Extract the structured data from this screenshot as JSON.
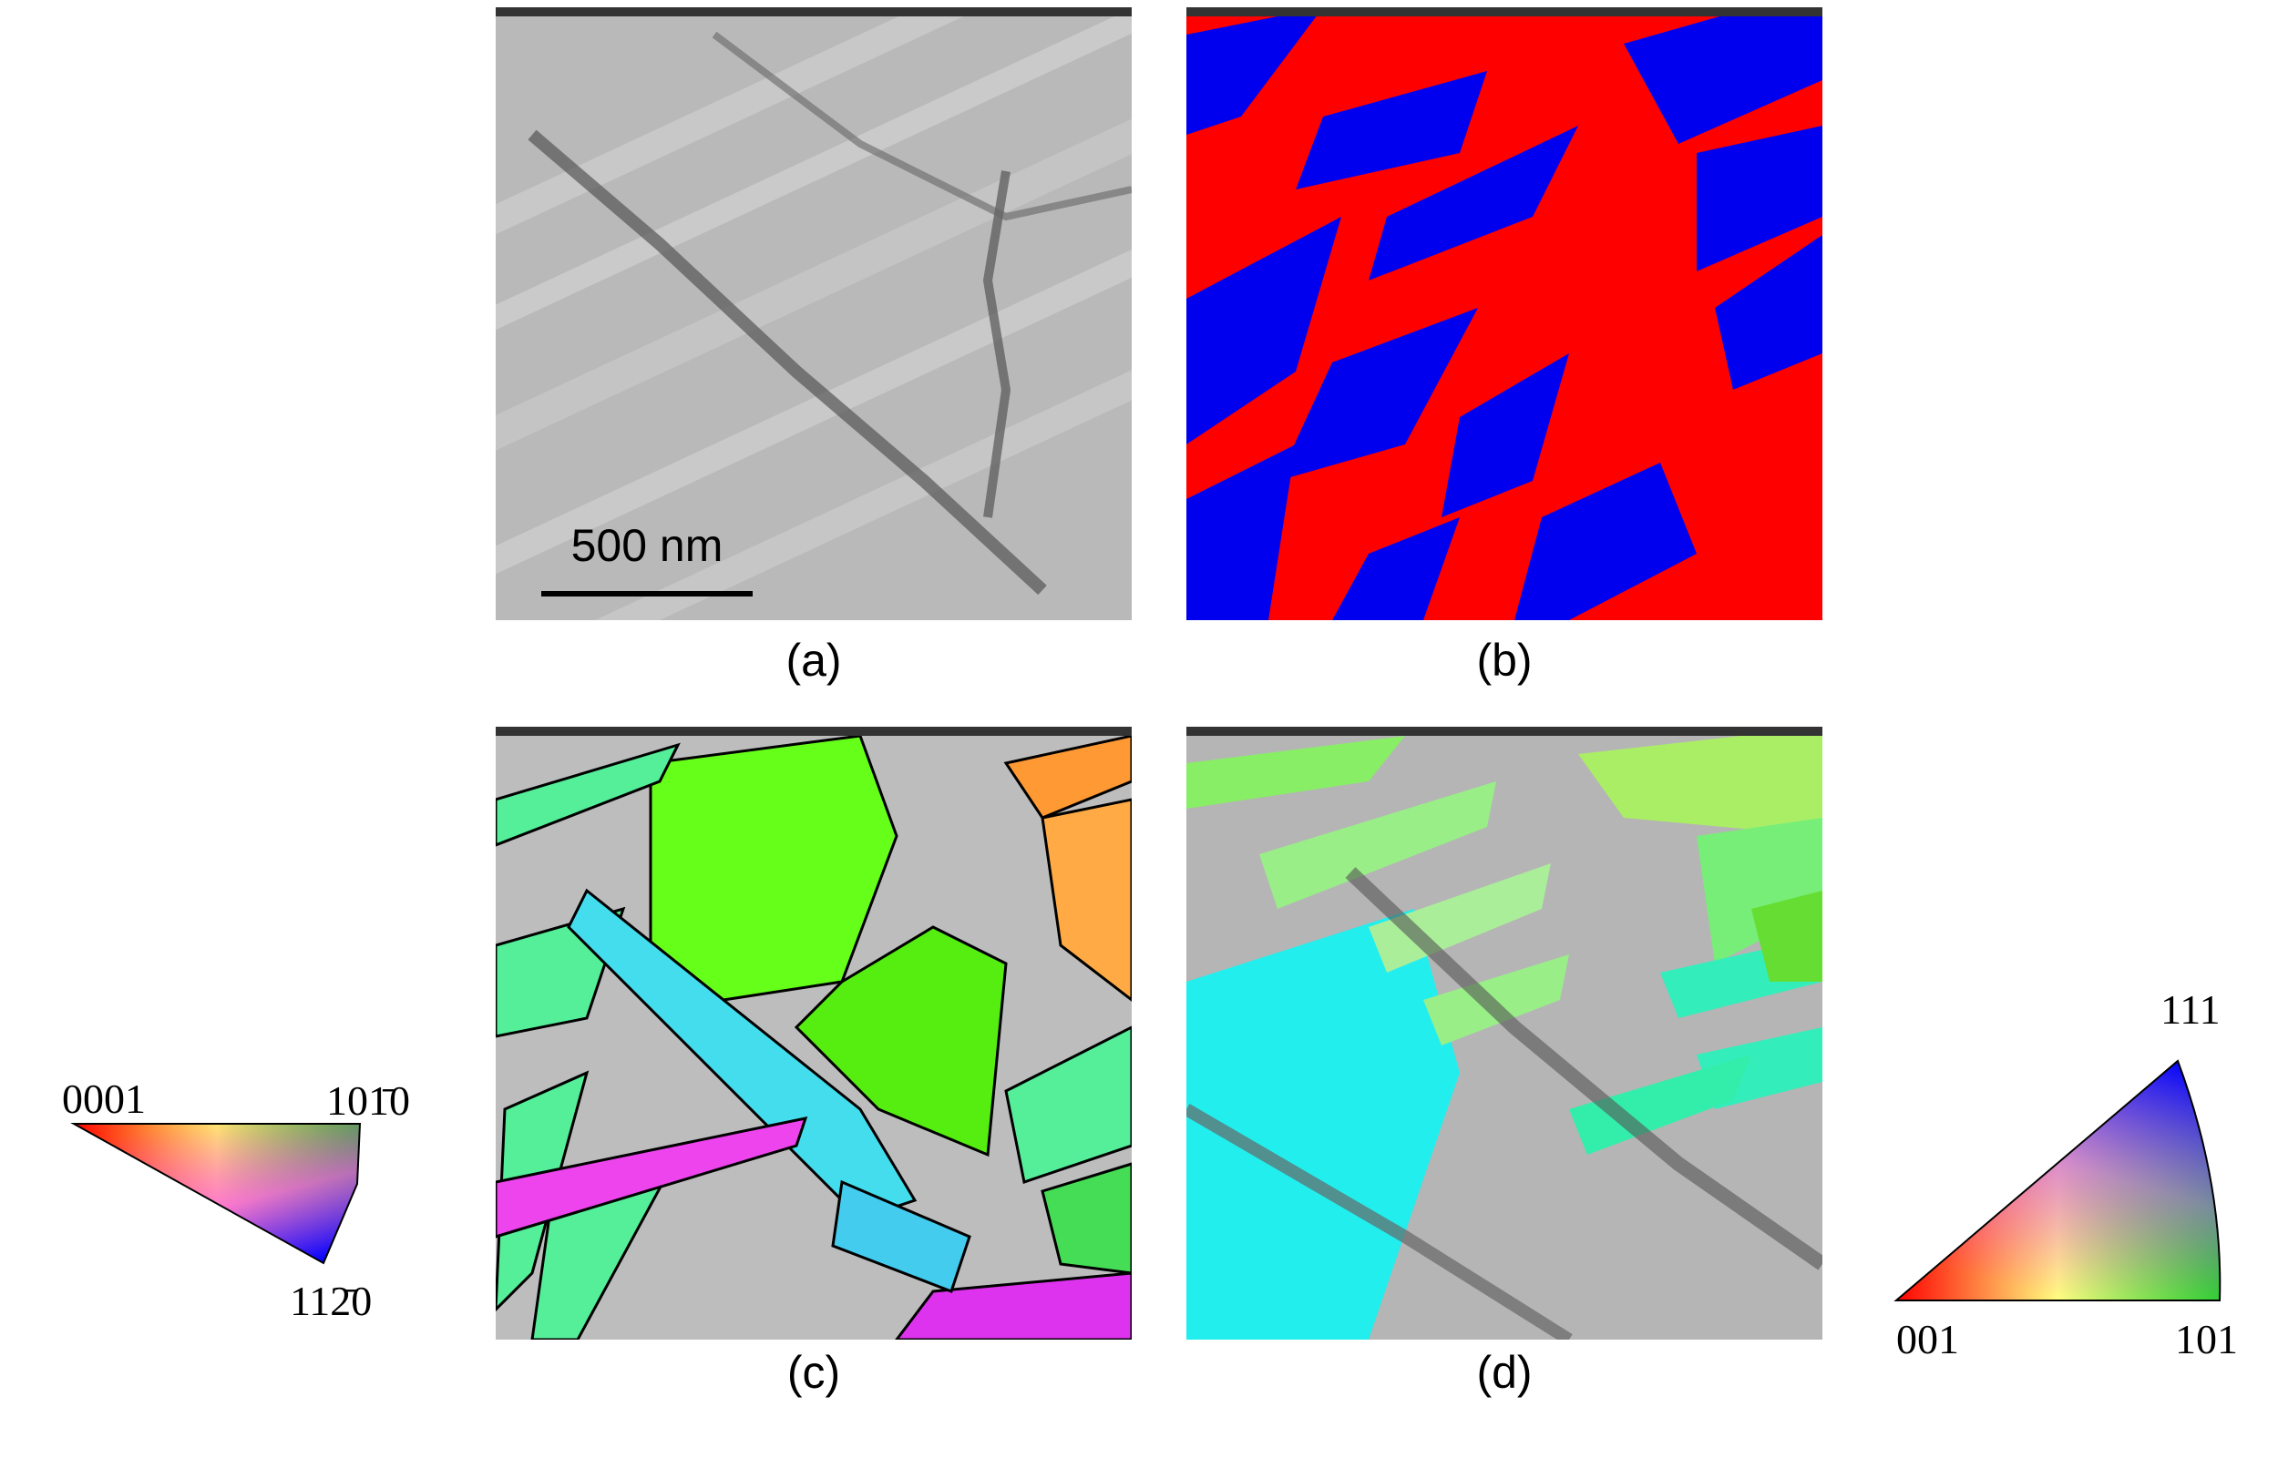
{
  "panels": [
    {
      "label": "(a)",
      "scale_bar": "500 nm"
    },
    {
      "label": "(b)"
    },
    {
      "label": "(c)"
    },
    {
      "label": "(d)"
    }
  ],
  "legends": [
    {
      "corners": [
        "0001",
        "101̄0",
        "112̄0"
      ]
    },
    {
      "corners": [
        "111",
        "001",
        "101"
      ]
    }
  ]
}
